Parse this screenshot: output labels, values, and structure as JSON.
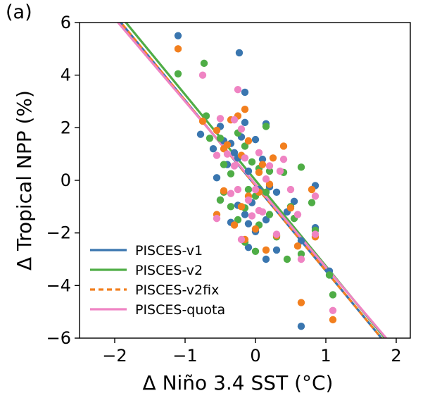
{
  "panel_label": "(a)",
  "chart_data": {
    "type": "scatter",
    "xlabel": "Δ Niño 3.4 SST (°C)",
    "ylabel": "Δ Tropical NPP (%)",
    "xlim": [
      -2.5,
      2.2
    ],
    "ylim": [
      -6,
      6
    ],
    "xticks": [
      -2,
      -1,
      0,
      1,
      2
    ],
    "yticks": [
      -6,
      -4,
      -2,
      0,
      2,
      4,
      6
    ],
    "xtick_labels": [
      "−2",
      "−1",
      "0",
      "1",
      "2"
    ],
    "ytick_labels": [
      "−6",
      "−4",
      "−2",
      "0",
      "2",
      "4",
      "6"
    ],
    "grid": false,
    "legend_position": "lower-left",
    "series": [
      {
        "name": "PISCES-v1",
        "color": "#3a76af",
        "fit": {
          "slope": -3.24,
          "intercept": -0.2
        },
        "points": [
          [
            -1.1,
            5.5
          ],
          [
            -0.23,
            4.85
          ],
          [
            -0.15,
            3.35
          ],
          [
            -0.78,
            1.75
          ],
          [
            -0.6,
            1.2
          ],
          [
            -0.5,
            2.05
          ],
          [
            -0.45,
            1.5
          ],
          [
            -0.4,
            0.6
          ],
          [
            -0.35,
            1.4
          ],
          [
            -0.3,
            1.05
          ],
          [
            -0.25,
            0.85
          ],
          [
            -0.2,
            1.65
          ],
          [
            -0.15,
            2.2
          ],
          [
            -0.1,
            0.35
          ],
          [
            0.0,
            1.55
          ],
          [
            0.1,
            0.8
          ],
          [
            0.15,
            2.15
          ],
          [
            0.2,
            -0.25
          ],
          [
            0.3,
            -0.45
          ],
          [
            0.05,
            -0.35
          ],
          [
            -0.05,
            -0.85
          ],
          [
            -0.15,
            -1.3
          ],
          [
            -0.25,
            -0.95
          ],
          [
            -0.35,
            -1.6
          ],
          [
            -0.55,
            0.1
          ],
          [
            -0.5,
            -0.75
          ],
          [
            -0.1,
            -1.65
          ],
          [
            0.0,
            -1.95
          ],
          [
            0.15,
            -1.5
          ],
          [
            0.3,
            -2.65
          ],
          [
            0.55,
            -0.8
          ],
          [
            0.65,
            -2.3
          ],
          [
            0.85,
            -0.2
          ],
          [
            0.85,
            -1.8
          ],
          [
            1.05,
            -3.45
          ],
          [
            0.65,
            -5.55
          ],
          [
            0.15,
            -3.0
          ],
          [
            -0.1,
            -2.55
          ],
          [
            0.45,
            -1.2
          ]
        ]
      },
      {
        "name": "PISCES-v2",
        "color": "#4fad46",
        "fit": {
          "slope": -3.26,
          "intercept": 0.0
        },
        "points": [
          [
            -1.1,
            4.05
          ],
          [
            -0.73,
            4.45
          ],
          [
            -0.7,
            2.45
          ],
          [
            -0.65,
            1.6
          ],
          [
            -0.5,
            1.6
          ],
          [
            -0.45,
            0.6
          ],
          [
            -0.35,
            0.25
          ],
          [
            -0.25,
            1.8
          ],
          [
            -0.15,
            1.3
          ],
          [
            -0.05,
            0.7
          ],
          [
            0.05,
            0.45
          ],
          [
            0.15,
            2.05
          ],
          [
            0.2,
            0.35
          ],
          [
            0.4,
            0.3
          ],
          [
            0.15,
            -0.45
          ],
          [
            0.0,
            -0.6
          ],
          [
            -0.1,
            -0.35
          ],
          [
            -0.15,
            -1.05
          ],
          [
            -0.25,
            -1.5
          ],
          [
            -0.35,
            -1.0
          ],
          [
            -0.45,
            -0.45
          ],
          [
            -0.5,
            -0.75
          ],
          [
            0.05,
            -1.7
          ],
          [
            0.2,
            -1.3
          ],
          [
            0.3,
            -2.15
          ],
          [
            0.55,
            -1.45
          ],
          [
            0.65,
            0.5
          ],
          [
            0.8,
            -0.85
          ],
          [
            0.65,
            -2.8
          ],
          [
            0.85,
            -1.9
          ],
          [
            1.05,
            -3.6
          ],
          [
            1.1,
            -4.35
          ],
          [
            0.45,
            -3.0
          ],
          [
            0.0,
            -2.7
          ],
          [
            -0.15,
            -2.35
          ],
          [
            0.5,
            -1.0
          ]
        ]
      },
      {
        "name": "PISCES-v2fix",
        "color": "#f27f1e",
        "fit": {
          "slope": -3.24,
          "intercept": -0.2
        },
        "points": [
          [
            -1.1,
            5.0
          ],
          [
            -0.75,
            2.25
          ],
          [
            -0.55,
            1.9
          ],
          [
            -0.45,
            1.2
          ],
          [
            -0.4,
            1.35
          ],
          [
            -0.35,
            2.3
          ],
          [
            -0.25,
            2.45
          ],
          [
            -0.2,
            0.95
          ],
          [
            -0.15,
            2.7
          ],
          [
            -0.1,
            1.5
          ],
          [
            0.05,
            0.3
          ],
          [
            0.1,
            0.6
          ],
          [
            0.25,
            0.85
          ],
          [
            0.4,
            1.3
          ],
          [
            0.2,
            -0.15
          ],
          [
            0.05,
            -0.45
          ],
          [
            -0.1,
            -0.6
          ],
          [
            -0.2,
            -1.0
          ],
          [
            -0.3,
            -1.7
          ],
          [
            -0.45,
            -0.4
          ],
          [
            -0.55,
            -1.3
          ],
          [
            0.0,
            -1.85
          ],
          [
            0.15,
            -2.65
          ],
          [
            0.3,
            -2.1
          ],
          [
            0.5,
            -1.05
          ],
          [
            0.6,
            -2.5
          ],
          [
            0.8,
            -0.35
          ],
          [
            0.85,
            -2.15
          ],
          [
            0.65,
            -4.65
          ],
          [
            1.1,
            -5.3
          ],
          [
            -0.15,
            -2.25
          ]
        ]
      },
      {
        "name": "PISCES-quota",
        "color": "#ef84c3",
        "fit": {
          "slope": -3.15,
          "intercept": -0.15
        },
        "points": [
          [
            -0.75,
            4.0
          ],
          [
            -0.25,
            3.45
          ],
          [
            -0.5,
            2.35
          ],
          [
            -0.3,
            2.3
          ],
          [
            -0.2,
            1.95
          ],
          [
            -0.55,
            0.95
          ],
          [
            -0.4,
            1.0
          ],
          [
            -0.3,
            0.55
          ],
          [
            -0.15,
            0.85
          ],
          [
            0.05,
            1.05
          ],
          [
            0.2,
            0.55
          ],
          [
            0.35,
            0.35
          ],
          [
            0.4,
            0.8
          ],
          [
            0.15,
            0.05
          ],
          [
            0.0,
            -0.35
          ],
          [
            -0.1,
            -0.75
          ],
          [
            -0.25,
            -0.35
          ],
          [
            -0.35,
            -0.5
          ],
          [
            -0.55,
            -1.45
          ],
          [
            -0.05,
            -1.35
          ],
          [
            0.1,
            -1.2
          ],
          [
            0.3,
            -2.05
          ],
          [
            0.5,
            -0.35
          ],
          [
            0.6,
            -1.3
          ],
          [
            0.85,
            -0.6
          ],
          [
            0.65,
            -3.0
          ],
          [
            0.85,
            -2.05
          ],
          [
            1.1,
            -4.95
          ],
          [
            -0.2,
            -2.25
          ],
          [
            0.05,
            -1.15
          ]
        ]
      }
    ]
  }
}
